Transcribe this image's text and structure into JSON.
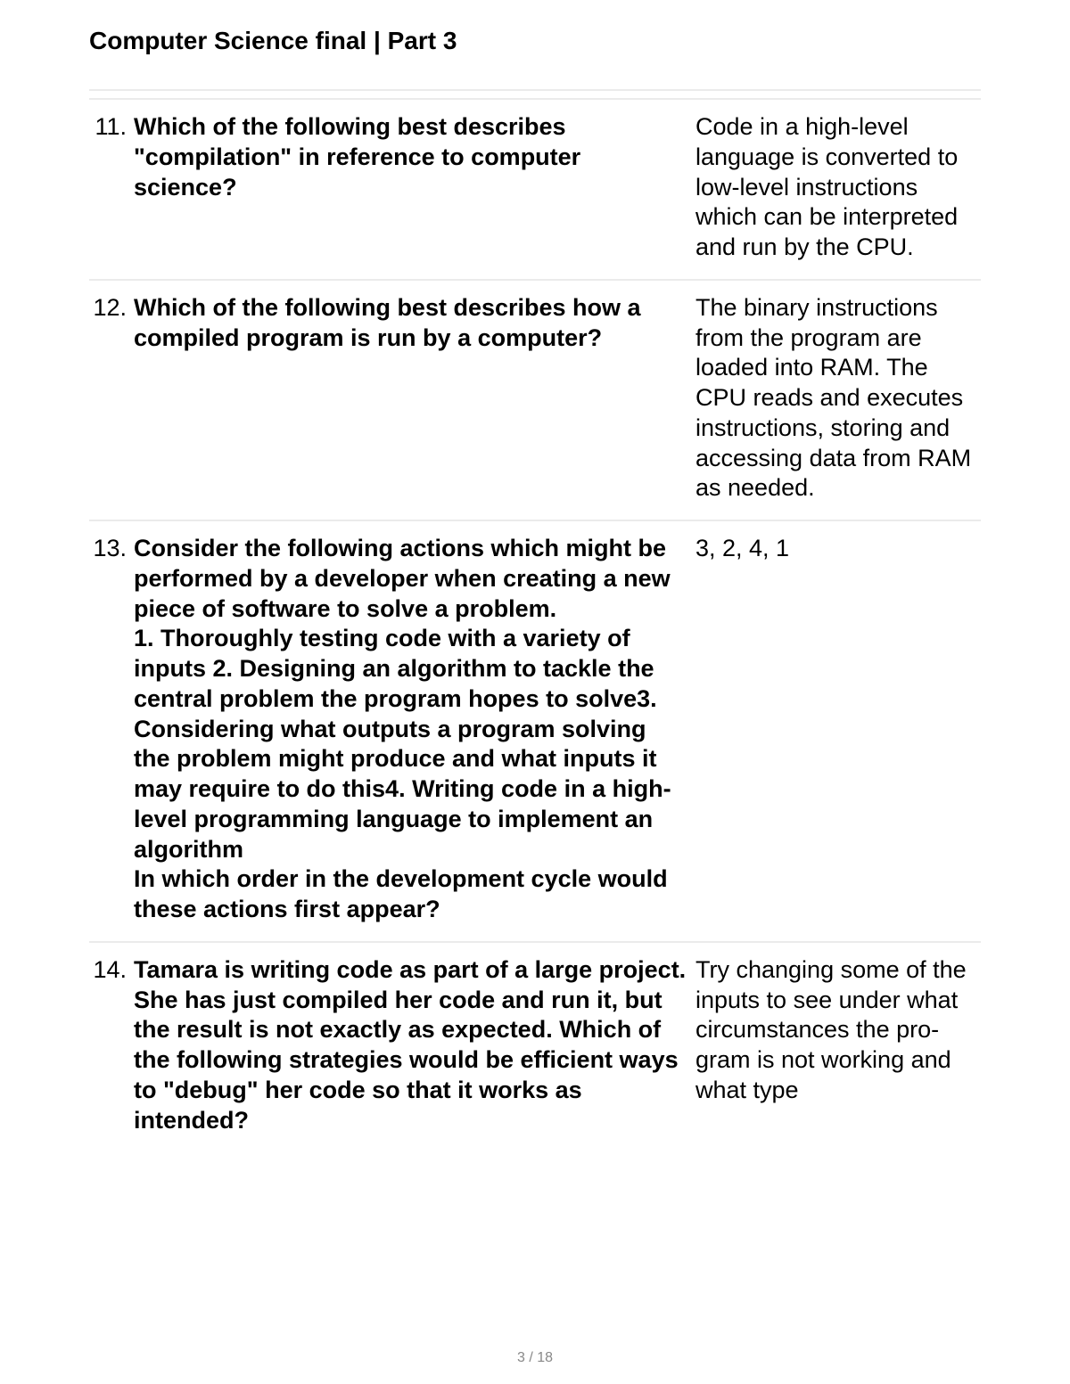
{
  "header": {
    "title": "Computer Science final | Part 3"
  },
  "questions": [
    {
      "number": "11.",
      "text_html": "Which of the following best describes \"compilation\" in reference to computer science?",
      "answer_html": "Code in a high-lev­el language is con­verted to low-level instructions which can be interpret­ed and run by the CPU."
    },
    {
      "number": "12.",
      "text_html": "Which of the following best describes how a compiled program is run by a computer?",
      "answer_html": "The binary instruc­tions from the pro­gram are loaded into RAM. The CPU reads and executes instruc­tions, storing and accessing data from RAM as needed."
    },
    {
      "number": "13.",
      "text_html": "Consider the following actions which might be per­formed by a developer when creating a new piece of software to solve a problem.<br>1. Thoroughly testing code with a variety of inputs 2. Designing an algorithm to tackle the central problem the program hopes to solve3. Considering what out­puts a program solving the problem might produce and what inputs it may require to do this4. Writing code in a high-level programming language to imple­ment an algorithm<br>In which order in the development cycle would these actions first appear?",
      "answer_html": "3, 2, 4, 1"
    },
    {
      "number": "14.",
      "text_html": "Tamara is writing code as part of a large project. She has just compiled her code and run it, but the result is not exactly as expected. Which of the following strate­gies would be efficient ways to \"debug\" her code so that it works as intended?",
      "answer_html": "Try changing some of the in­puts to see un­der what circum­stances the pro­gram is not work­ing and what type"
    }
  ],
  "footer": {
    "page_indicator": "3 / 18"
  }
}
